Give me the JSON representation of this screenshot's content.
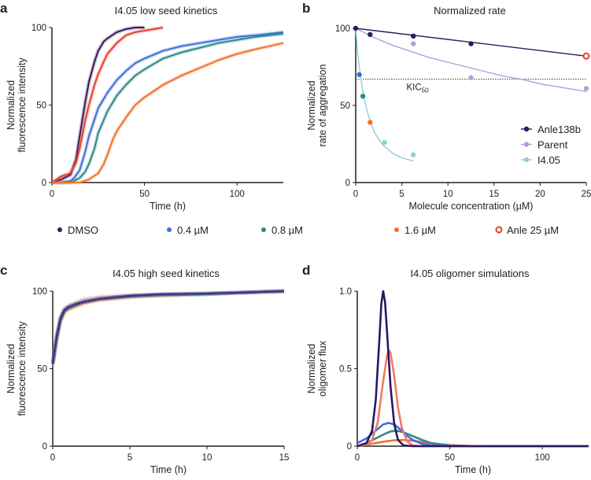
{
  "legend": [
    {
      "label": "DMSO",
      "color": "#3a1c5c",
      "marker": "dot"
    },
    {
      "label": "0.4 µM",
      "color": "#3d6ee0",
      "marker": "dot"
    },
    {
      "label": "0.8 µM",
      "color": "#2f8a88",
      "marker": "dot"
    },
    {
      "label": "1.6 µM",
      "color": "#ee7430",
      "marker": "dot"
    },
    {
      "label": "Anle 25 µM",
      "color": "#e8412e",
      "marker": "open-circle"
    }
  ],
  "chart_data": [
    {
      "panel": "a",
      "type": "line",
      "title": "I4.05 low seed kinetics",
      "xlabel": "Time (h)",
      "ylabel": [
        "Normalized",
        "fluorescence intensity"
      ],
      "xlim": [
        0,
        125
      ],
      "ylim": [
        0,
        100
      ],
      "xticks": [
        0,
        50,
        100
      ],
      "yticks": [
        0,
        50,
        100
      ],
      "grid": false,
      "series": [
        {
          "name": "DMSO",
          "color": "#3a1c5c",
          "x": [
            0,
            5,
            10,
            13,
            15,
            18,
            20,
            23,
            25,
            28,
            30,
            35,
            40,
            45,
            50
          ],
          "y": [
            0,
            2,
            5,
            15,
            30,
            52,
            65,
            78,
            85,
            91,
            93,
            97,
            99,
            100,
            100
          ]
        },
        {
          "name": "Anle 25 µM",
          "color": "#e8412e",
          "x": [
            0,
            5,
            10,
            13,
            15,
            18,
            20,
            23,
            25,
            28,
            30,
            35,
            40,
            45,
            50,
            55,
            60
          ],
          "y": [
            0,
            4,
            6,
            13,
            22,
            40,
            50,
            63,
            70,
            78,
            83,
            90,
            95,
            97,
            98,
            99,
            100
          ]
        },
        {
          "name": "0.4 µM",
          "color": "#3d6ee0",
          "x": [
            0,
            5,
            10,
            12,
            15,
            18,
            20,
            25,
            30,
            35,
            40,
            45,
            50,
            60,
            70,
            80,
            90,
            100,
            110,
            125
          ],
          "y": [
            0,
            0,
            1,
            3,
            8,
            20,
            30,
            48,
            58,
            66,
            72,
            77,
            80,
            85,
            88,
            90,
            92,
            94,
            95,
            97
          ]
        },
        {
          "name": "0.8 µM",
          "color": "#2f8a88",
          "x": [
            0,
            5,
            10,
            15,
            18,
            20,
            23,
            25,
            30,
            35,
            40,
            45,
            50,
            60,
            70,
            80,
            90,
            100,
            110,
            125
          ],
          "y": [
            0,
            0,
            0,
            3,
            7,
            12,
            22,
            32,
            46,
            56,
            63,
            69,
            73,
            80,
            84,
            87,
            90,
            92,
            94,
            96
          ]
        },
        {
          "name": "1.6 µM",
          "color": "#ee7430",
          "x": [
            0,
            10,
            15,
            20,
            25,
            28,
            30,
            33,
            35,
            40,
            45,
            50,
            60,
            70,
            80,
            90,
            100,
            110,
            125
          ],
          "y": [
            0,
            0,
            0,
            2,
            6,
            12,
            18,
            28,
            33,
            42,
            50,
            55,
            63,
            69,
            74,
            79,
            83,
            86,
            90
          ]
        }
      ]
    },
    {
      "panel": "b",
      "type": "scatter",
      "title": "Normalized rate",
      "xlabel": "Molecule concentration (µM)",
      "ylabel": [
        "Normalized",
        "rate of aggregation"
      ],
      "xlim": [
        0,
        25
      ],
      "ylim": [
        0,
        100
      ],
      "xticks": [
        0,
        5,
        10,
        15,
        20,
        25
      ],
      "yticks": [
        0,
        50,
        100
      ],
      "grid": false,
      "legend_position": "right",
      "annotation": {
        "text": "KIC",
        "sub": "50",
        "y": 67
      },
      "series": [
        {
          "name": "Anle138b",
          "color": "#2e1b5a",
          "points": [
            {
              "x": 0,
              "y": 100
            },
            {
              "x": 1.56,
              "y": 96
            },
            {
              "x": 6.25,
              "y": 95
            },
            {
              "x": 12.5,
              "y": 90
            },
            {
              "x": 25,
              "y": 82,
              "color": "#e8412e",
              "open": true
            }
          ],
          "fit": {
            "x": [
              0,
              25
            ],
            "y": [
              100,
              82
            ]
          }
        },
        {
          "name": "Parent",
          "color": "#aaa2d8",
          "points": [
            {
              "x": 6.25,
              "y": 90
            },
            {
              "x": 12.5,
              "y": 68
            },
            {
              "x": 25,
              "y": 61
            }
          ],
          "fit": {
            "x": [
              0,
              2,
              4,
              6,
              8,
              10,
              12,
              14,
              16,
              18,
              20,
              22,
              25
            ],
            "y": [
              100,
              94,
              89,
              85,
              81,
              78,
              75,
              72,
              69,
              67,
              64,
              62,
              59
            ]
          }
        },
        {
          "name": "I4.05",
          "color": "#8fd0d2",
          "points": [
            {
              "x": 0.39,
              "y": 70,
              "color": "#3d6ee0"
            },
            {
              "x": 0.78,
              "y": 56,
              "color": "#2f8a88"
            },
            {
              "x": 1.56,
              "y": 39,
              "color": "#ee7430"
            },
            {
              "x": 3.125,
              "y": 26
            },
            {
              "x": 6.25,
              "y": 18
            }
          ],
          "fit": {
            "x": [
              0,
              0.25,
              0.5,
              0.75,
              1,
              1.5,
              2,
              2.5,
              3,
              4,
              5,
              6.25
            ],
            "y": [
              100,
              82,
              70,
              60,
              52,
              41,
              33,
              28,
              24,
              19,
              16,
              14
            ]
          }
        }
      ]
    },
    {
      "panel": "c",
      "type": "scatter",
      "title": "I4.05 high seed kinetics",
      "xlabel": "Time (h)",
      "ylabel": [
        "Normalized",
        "fluorescence intensity"
      ],
      "xlim": [
        0,
        15
      ],
      "ylim": [
        0,
        100
      ],
      "xticks": [
        0,
        5,
        10,
        15
      ],
      "yticks": [
        0,
        50,
        100
      ],
      "grid": false,
      "series": [
        {
          "name": "Anle 25 µM",
          "color": "#f2a79c",
          "x": [
            0,
            0.25,
            0.5,
            0.75,
            1,
            1.5,
            2,
            3,
            4,
            5,
            7,
            10,
            12,
            15
          ],
          "y": [
            54,
            72,
            84,
            89,
            91,
            93,
            95,
            96.5,
            97,
            97.5,
            98,
            98.5,
            99,
            100
          ]
        },
        {
          "name": "1.6 µM",
          "color": "#ee7430",
          "x": [
            0,
            0.25,
            0.5,
            0.75,
            1,
            1.5,
            2,
            3,
            4,
            5,
            7,
            10,
            12,
            15
          ],
          "y": [
            52,
            68,
            80,
            86,
            88,
            90,
            92,
            94,
            95,
            96,
            97,
            98,
            99,
            100
          ]
        },
        {
          "name": "0.8 µM",
          "color": "#2f8a88",
          "x": [
            0,
            0.25,
            0.5,
            0.75,
            1,
            1.5,
            2,
            3,
            4,
            5,
            7,
            10,
            12,
            15
          ],
          "y": [
            53,
            69,
            81,
            87,
            89,
            91,
            93,
            95,
            96,
            96.5,
            97.5,
            98,
            99,
            100
          ]
        },
        {
          "name": "0.4 µM",
          "color": "#3d6ee0",
          "x": [
            0,
            0.25,
            0.5,
            0.75,
            1,
            1.5,
            2,
            3,
            4,
            5,
            7,
            10,
            12,
            15
          ],
          "y": [
            54,
            71,
            83,
            88,
            90,
            92,
            93.5,
            95,
            96,
            97,
            98,
            98.5,
            99,
            100
          ]
        },
        {
          "name": "DMSO",
          "color": "#2e1f6a",
          "x": [
            0,
            0.25,
            0.5,
            0.75,
            1,
            1.5,
            2,
            3,
            4,
            5,
            7,
            10,
            12,
            15
          ],
          "y": [
            53,
            70,
            82,
            87.5,
            89.5,
            91.5,
            93,
            95,
            96,
            97,
            98,
            98.5,
            99,
            100
          ]
        }
      ]
    },
    {
      "panel": "d",
      "type": "line",
      "title": "I4.05 oligomer simulations",
      "xlabel": "Time (h)",
      "ylabel": [
        "Normalized",
        "oligomer flux"
      ],
      "xlim": [
        0,
        125
      ],
      "ylim": [
        0,
        1.0
      ],
      "xticks": [
        0,
        50,
        100
      ],
      "yticks": [
        0,
        0.5,
        1.0
      ],
      "ytick_labels": [
        "0",
        "0.5",
        "1.0"
      ],
      "grid": false,
      "series": [
        {
          "name": "1.6 µM",
          "color": "#ee7430",
          "x": [
            0,
            5,
            10,
            15,
            20,
            25,
            30,
            35,
            40,
            50,
            60,
            70,
            125
          ],
          "y": [
            0,
            0.01,
            0.02,
            0.03,
            0.038,
            0.04,
            0.035,
            0.027,
            0.018,
            0.007,
            0.002,
            0,
            0
          ]
        },
        {
          "name": "0.8 µM",
          "color": "#2f8a88",
          "x": [
            0,
            5,
            10,
            15,
            18,
            21,
            25,
            30,
            35,
            40,
            50,
            60,
            125
          ],
          "y": [
            0,
            0.02,
            0.05,
            0.08,
            0.095,
            0.1,
            0.09,
            0.065,
            0.04,
            0.02,
            0.005,
            0,
            0
          ]
        },
        {
          "name": "0.4 µM",
          "color": "#3d6ee0",
          "x": [
            0,
            5,
            10,
            14,
            17,
            20,
            23,
            26,
            30,
            35,
            40,
            50,
            125
          ],
          "y": [
            0.02,
            0.05,
            0.1,
            0.14,
            0.15,
            0.14,
            0.11,
            0.075,
            0.04,
            0.015,
            0.005,
            0,
            0
          ]
        },
        {
          "name": "Anle 25 µM",
          "color": "#f07a66",
          "x": [
            0,
            5,
            8,
            11,
            14,
            16,
            17,
            18,
            20,
            22,
            24,
            27,
            30,
            35,
            125
          ],
          "y": [
            0,
            0.01,
            0.04,
            0.15,
            0.42,
            0.58,
            0.62,
            0.6,
            0.45,
            0.25,
            0.12,
            0.03,
            0.005,
            0,
            0
          ]
        },
        {
          "name": "DMSO",
          "color": "#2d1760",
          "x": [
            0,
            5,
            8,
            10,
            12,
            13,
            14,
            15,
            16,
            18,
            20,
            22,
            25,
            30,
            125
          ],
          "y": [
            0,
            0.02,
            0.1,
            0.3,
            0.7,
            0.92,
            1.0,
            0.93,
            0.75,
            0.38,
            0.14,
            0.04,
            0.005,
            0,
            0
          ]
        }
      ]
    }
  ]
}
